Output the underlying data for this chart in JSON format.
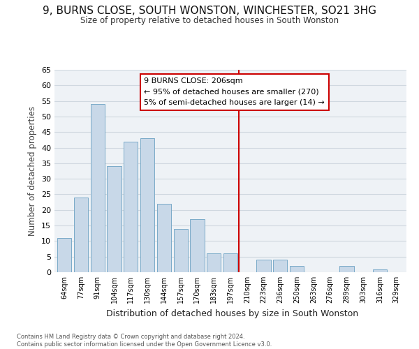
{
  "title": "9, BURNS CLOSE, SOUTH WONSTON, WINCHESTER, SO21 3HG",
  "subtitle": "Size of property relative to detached houses in South Wonston",
  "xlabel": "Distribution of detached houses by size in South Wonston",
  "ylabel": "Number of detached properties",
  "categories": [
    "64sqm",
    "77sqm",
    "91sqm",
    "104sqm",
    "117sqm",
    "130sqm",
    "144sqm",
    "157sqm",
    "170sqm",
    "183sqm",
    "197sqm",
    "210sqm",
    "223sqm",
    "236sqm",
    "250sqm",
    "263sqm",
    "276sqm",
    "289sqm",
    "303sqm",
    "316sqm",
    "329sqm"
  ],
  "values": [
    11,
    24,
    54,
    34,
    42,
    43,
    22,
    14,
    17,
    6,
    6,
    0,
    4,
    4,
    2,
    0,
    0,
    2,
    0,
    1,
    0
  ],
  "bar_color": "#c8d8e8",
  "bar_edge_color": "#7aaac8",
  "grid_color": "#d0d8e0",
  "ylim": [
    0,
    65
  ],
  "yticks": [
    0,
    5,
    10,
    15,
    20,
    25,
    30,
    35,
    40,
    45,
    50,
    55,
    60,
    65
  ],
  "vline_color": "#cc0000",
  "annotation_title": "9 BURNS CLOSE: 206sqm",
  "annotation_line1": "← 95% of detached houses are smaller (270)",
  "annotation_line2": "5% of semi-detached houses are larger (14) →",
  "footer_line1": "Contains HM Land Registry data © Crown copyright and database right 2024.",
  "footer_line2": "Contains public sector information licensed under the Open Government Licence v3.0.",
  "bg_color": "#eef2f6"
}
